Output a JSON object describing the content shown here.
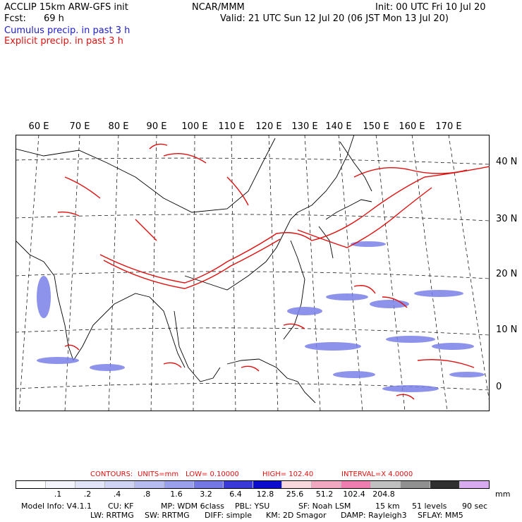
{
  "header": {
    "title_left": "ACCLIP 15km ARW-GFS init",
    "fcst_label": "Fcst:",
    "fcst_value": "69 h",
    "center": "NCAR/MMM",
    "init": "Init: 00 UTC Fri 10 Jul 20",
    "valid": "Valid: 21 UTC Sun 12 Jul 20 (06 JST Mon 13 Jul 20)",
    "legend_cumulus": "Cumulus precip. in past 3 h",
    "legend_explicit": "Explicit precip. in past 3 h"
  },
  "colors": {
    "cumulus": "#1c1cd0",
    "explicit": "#e01010",
    "land": "#ffffff",
    "coast": "#000000"
  },
  "map": {
    "lon_labels": [
      "60 E",
      "70 E",
      "80 E",
      "90 E",
      "100 E",
      "110 E",
      "120 E",
      "130 E",
      "140 E",
      "150 E",
      "160 E",
      "170 E"
    ],
    "lat_labels": [
      "40 N",
      "30 N",
      "20 N",
      "10 N",
      "0"
    ]
  },
  "contours_line": {
    "contours": "CONTOURS:",
    "units": "UNITS=mm",
    "low": "LOW=  0.10000",
    "high": "HIGH=   102.40",
    "interval": "INTERVAL=X   4.0000"
  },
  "colorbar": {
    "colors": [
      "#ffffff",
      "#f4f4fc",
      "#e2e4f8",
      "#cfd4f4",
      "#b6bcf0",
      "#9aa0ec",
      "#7478e4",
      "#3a3ad8",
      "#0c0ccc",
      "#f8d8dc",
      "#f2a8c0",
      "#ee7eb0",
      "#c0c0c0",
      "#909090",
      "#303030",
      "#d8aaf0"
    ],
    "ticks": [
      ".1",
      ".2",
      ".4",
      ".8",
      "1.6",
      "3.2",
      "6.4",
      "12.8",
      "25.6",
      "51.2",
      "102.4",
      "204.8"
    ],
    "unit": "mm"
  },
  "model_info": {
    "line1": [
      "Model Info: V4.1.1",
      "CU: KF",
      "MP: WDM 6class",
      "PBL: YSU",
      "SF: Noah LSM",
      "15 km",
      "51 levels",
      "90 sec"
    ],
    "line2": [
      "LW: RRTMG",
      "SW: RRTMG",
      "DIFF: simple",
      "KM: 2D Smagor",
      "DAMP: Rayleigh3",
      "SFLAY: MM5"
    ]
  }
}
